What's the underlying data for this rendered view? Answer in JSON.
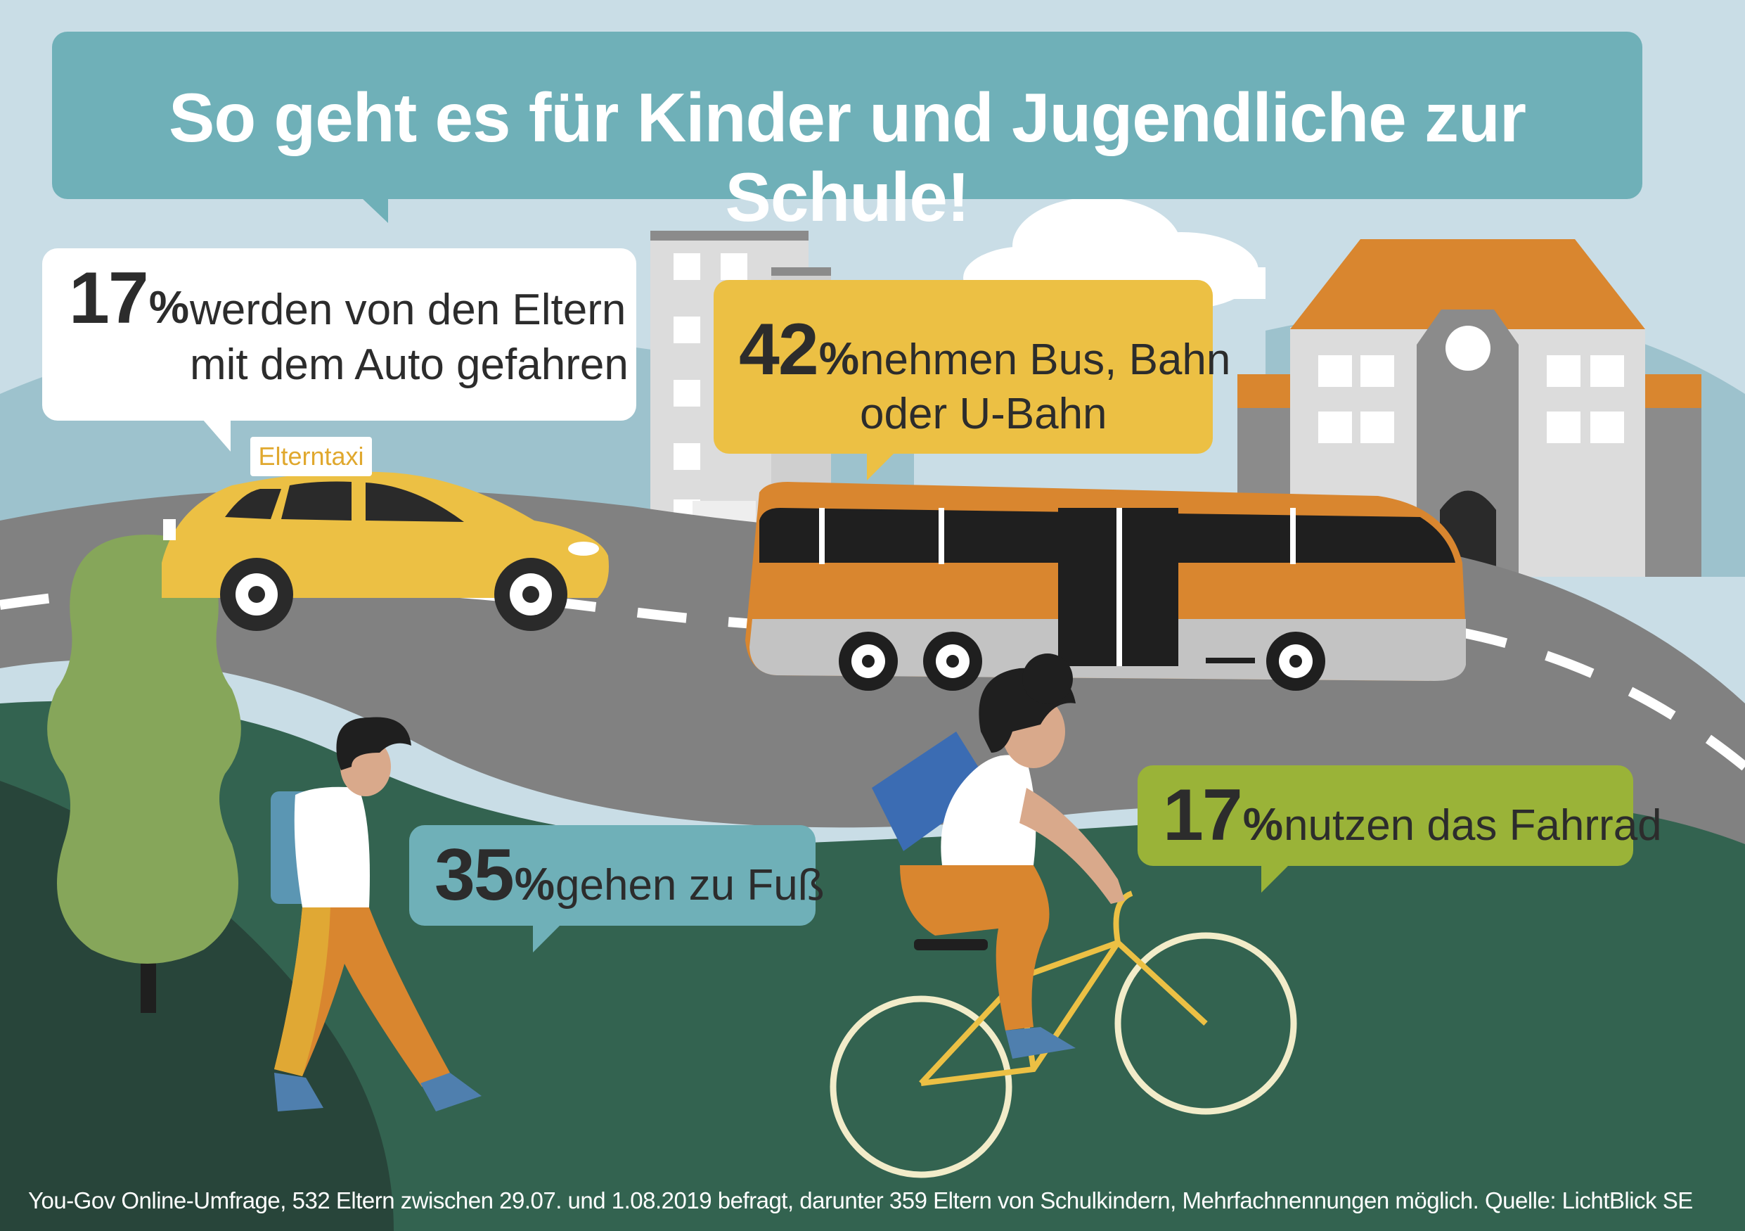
{
  "title": "So geht es für Kinder und Jugendliche zur Schule!",
  "taxi_sign": "Elterntaxi",
  "footnote": "You-Gov Online-Umfrage, 532 Eltern zwischen 29.07. und 1.08.2019 befragt, darunter 359 Eltern von Schulkindern, Mehrfachnennungen möglich. Quelle: LichtBlick SE",
  "chart_data": {
    "type": "infographic",
    "title": "So geht es für Kinder und Jugendliche zur Schule!",
    "categories": [
      "Auto",
      "Bus, Bahn oder U-Bahn",
      "zu Fuß",
      "Fahrrad"
    ],
    "values": [
      17,
      42,
      35,
      17
    ],
    "unit": "%",
    "items": [
      {
        "value": 17,
        "value_label": "17",
        "unit": "%",
        "line1": "werden von den Eltern",
        "line2": "mit dem Auto gefahren",
        "color": "#ffffff"
      },
      {
        "value": 42,
        "value_label": "42",
        "unit": "%",
        "line1": "nehmen Bus, Bahn",
        "line2": "oder U-Bahn",
        "color": "#ecc044"
      },
      {
        "value": 35,
        "value_label": "35",
        "unit": "%",
        "line1": "gehen zu Fuß",
        "line2": "",
        "color": "#6fb0b8"
      },
      {
        "value": 17,
        "value_label": "17",
        "unit": "%",
        "line1": "nutzen das Fahrrad",
        "line2": "",
        "color": "#9ab338"
      }
    ]
  },
  "colors": {
    "sky": "#c9dde6",
    "title_bubble": "#6fb0b8",
    "road": "#818181",
    "grass_dark": "#336350",
    "grass_darker": "#28453a",
    "taxi": "#ecc044",
    "bus_orange": "#d9862f",
    "school_roof": "#d9862f"
  }
}
